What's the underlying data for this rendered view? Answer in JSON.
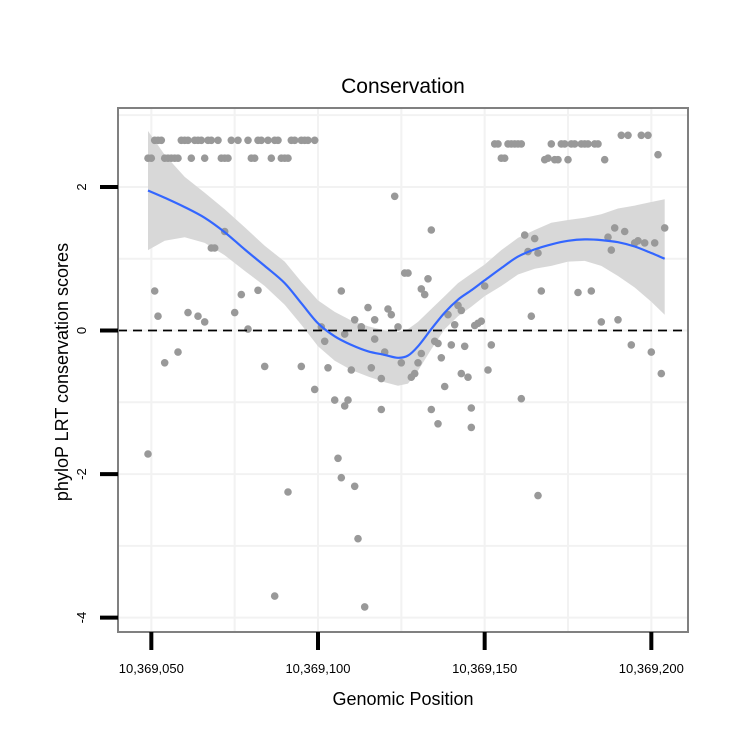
{
  "chart_data": {
    "type": "scatter",
    "title": "Conservation",
    "xlabel": "Genomic Position",
    "ylabel": "phyloP LRT conservation scores",
    "xlim": [
      10369040,
      10369211
    ],
    "ylim": [
      -4.2,
      3.1
    ],
    "x_ticks": [
      10369050,
      10369100,
      10369150,
      10369200
    ],
    "x_tick_labels": [
      "10,369,050",
      "10,369,100",
      "10,369,150",
      "10,369,200"
    ],
    "y_ticks": [
      -4,
      -2,
      0,
      2
    ],
    "y_tick_labels": [
      "-4",
      "-2",
      "0",
      "2"
    ],
    "reference_line": {
      "y": 0,
      "style": "dashed"
    },
    "colors": {
      "points": "#999999",
      "smooth_line": "#3366ff",
      "ribbon": "#d6d6d6",
      "grid": "#f2f2f2",
      "frame": "#808080"
    },
    "series": [
      {
        "name": "scores",
        "x": [
          10369049,
          10369050,
          10369051,
          10369052,
          10369053,
          10369054,
          10369055,
          10369056,
          10369057,
          10369058,
          10369059,
          10369060,
          10369061,
          10369062,
          10369063,
          10369064,
          10369065,
          10369066,
          10369067,
          10369068,
          10369070,
          10369071,
          10369072,
          10369073,
          10369074,
          10369076,
          10369079,
          10369080,
          10369081,
          10369082,
          10369083,
          10369085,
          10369086,
          10369087,
          10369088,
          10369089,
          10369090,
          10369091,
          10369092,
          10369093,
          10369095,
          10369096,
          10369097,
          10369099,
          10369049,
          10369051,
          10369052,
          10369054,
          10369058,
          10369061,
          10369064,
          10369066,
          10369068,
          10369069,
          10369072,
          10369075,
          10369077,
          10369079,
          10369082,
          10369084,
          10369087,
          10369091,
          10369095,
          10369099,
          10369101,
          10369102,
          10369103,
          10369105,
          10369106,
          10369107,
          10369108,
          10369110,
          10369111,
          10369112,
          10369113,
          10369114,
          10369116,
          10369117,
          10369119,
          10369120,
          10369121,
          10369122,
          10369123,
          10369124,
          10369125,
          10369126,
          10369127,
          10369128,
          10369129,
          10369130,
          10369131,
          10369132,
          10369133,
          10369134,
          10369135,
          10369136,
          10369138,
          10369139,
          10369140,
          10369141,
          10369142,
          10369143,
          10369144,
          10369145,
          10369146,
          10369147,
          10369148,
          10369149,
          10369150,
          10369151,
          10369152,
          10369153,
          10369154,
          10369155,
          10369156,
          10369157,
          10369158,
          10369159,
          10369160,
          10369161,
          10369162,
          10369163,
          10369164,
          10369165,
          10369166,
          10369167,
          10369168,
          10369169,
          10369170,
          10369171,
          10369172,
          10369173,
          10369174,
          10369175,
          10369176,
          10369177,
          10369178,
          10369179,
          10369180,
          10369181,
          10369182,
          10369183,
          10369184,
          10369185,
          10369186,
          10369187,
          10369188,
          10369189,
          10369190,
          10369191,
          10369192,
          10369193,
          10369194,
          10369195,
          10369196,
          10369197,
          10369198,
          10369199,
          10369200,
          10369201,
          10369202,
          10369203,
          10369204,
          10369107,
          10369109,
          10369111,
          10369113,
          10369115,
          10369117,
          10369134,
          10369137,
          10369146,
          10369131,
          10369119,
          10369108,
          10369136,
          10369143,
          10369161,
          10369166
        ],
        "y": [
          2.4,
          2.4,
          2.65,
          2.65,
          2.65,
          2.4,
          2.4,
          2.4,
          2.4,
          2.4,
          2.65,
          2.65,
          2.65,
          2.4,
          2.65,
          2.65,
          2.65,
          2.4,
          2.65,
          2.65,
          2.65,
          2.4,
          2.4,
          2.4,
          2.65,
          2.65,
          2.65,
          2.4,
          2.4,
          2.65,
          2.65,
          2.65,
          2.4,
          2.65,
          2.65,
          2.4,
          2.4,
          2.4,
          2.65,
          2.65,
          2.65,
          2.65,
          2.65,
          2.65,
          -1.72,
          0.55,
          0.2,
          -0.45,
          -0.3,
          0.25,
          0.2,
          0.12,
          1.15,
          1.15,
          1.38,
          0.25,
          0.5,
          0.02,
          0.56,
          -0.5,
          -3.7,
          -2.25,
          -0.5,
          -0.82,
          0.05,
          -0.15,
          -0.52,
          -0.97,
          -1.78,
          -2.05,
          -1.05,
          -0.55,
          -2.17,
          -2.9,
          0.05,
          -3.85,
          -0.52,
          0.15,
          -1.1,
          -0.3,
          0.3,
          0.22,
          1.87,
          0.05,
          -0.45,
          0.8,
          0.8,
          -0.65,
          -0.6,
          -0.45,
          0.58,
          0.5,
          0.72,
          1.4,
          -0.15,
          -1.3,
          -0.78,
          0.22,
          -0.2,
          0.08,
          0.35,
          0.28,
          -0.22,
          -0.65,
          -1.35,
          0.07,
          0.1,
          0.13,
          0.62,
          -0.55,
          -0.2,
          2.6,
          2.6,
          2.4,
          2.4,
          2.6,
          2.6,
          2.6,
          2.6,
          2.6,
          1.33,
          1.1,
          0.2,
          1.28,
          1.08,
          0.55,
          2.38,
          2.4,
          2.6,
          2.38,
          2.38,
          2.6,
          2.6,
          2.38,
          2.6,
          2.6,
          0.53,
          2.6,
          2.6,
          2.6,
          0.55,
          2.6,
          2.6,
          0.12,
          2.38,
          1.3,
          1.12,
          1.43,
          0.15,
          2.72,
          1.38,
          2.72,
          -0.2,
          1.22,
          1.25,
          2.72,
          1.22,
          2.72,
          -0.3,
          1.22,
          2.45,
          -0.6,
          1.43,
          0.55,
          -0.97,
          0.15,
          0.05,
          0.32,
          -0.12,
          -1.1,
          -0.38,
          -1.08,
          -0.32,
          -0.67,
          -0.05,
          -0.18,
          -0.6,
          -0.95,
          -2.3
        ]
      }
    ],
    "smooth": {
      "method": "loess",
      "x": [
        10369049,
        10369054,
        10369060,
        10369066,
        10369072,
        10369078,
        10369084,
        10369090,
        10369095,
        10369100,
        10369105,
        10369110,
        10369115,
        10369120,
        10369124,
        10369127,
        10369130,
        10369134,
        10369138,
        10369142,
        10369146,
        10369150,
        10369155,
        10369160,
        10369165,
        10369170,
        10369175,
        10369180,
        10369185,
        10369190,
        10369195,
        10369200,
        10369204
      ],
      "y": [
        1.95,
        1.85,
        1.72,
        1.57,
        1.37,
        1.13,
        0.9,
        0.66,
        0.38,
        0.1,
        -0.08,
        -0.2,
        -0.29,
        -0.34,
        -0.38,
        -0.35,
        -0.22,
        0.02,
        0.25,
        0.43,
        0.56,
        0.7,
        0.87,
        1.03,
        1.13,
        1.2,
        1.25,
        1.27,
        1.26,
        1.23,
        1.17,
        1.08,
        1.0
      ],
      "lower": [
        1.12,
        1.25,
        1.3,
        1.22,
        1.05,
        0.83,
        0.62,
        0.36,
        0.08,
        -0.22,
        -0.42,
        -0.55,
        -0.64,
        -0.72,
        -0.77,
        -0.74,
        -0.56,
        -0.26,
        0.02,
        0.2,
        0.33,
        0.48,
        0.62,
        0.78,
        0.86,
        0.9,
        0.96,
        0.97,
        0.9,
        0.76,
        0.6,
        0.4,
        0.22
      ],
      "upper": [
        2.78,
        2.45,
        2.14,
        1.92,
        1.69,
        1.44,
        1.18,
        0.96,
        0.68,
        0.42,
        0.26,
        0.14,
        0.06,
        0.0,
        -0.02,
        0.02,
        0.12,
        0.3,
        0.48,
        0.66,
        0.79,
        0.92,
        1.12,
        1.29,
        1.4,
        1.5,
        1.54,
        1.57,
        1.62,
        1.7,
        1.74,
        1.79,
        1.83
      ]
    }
  }
}
